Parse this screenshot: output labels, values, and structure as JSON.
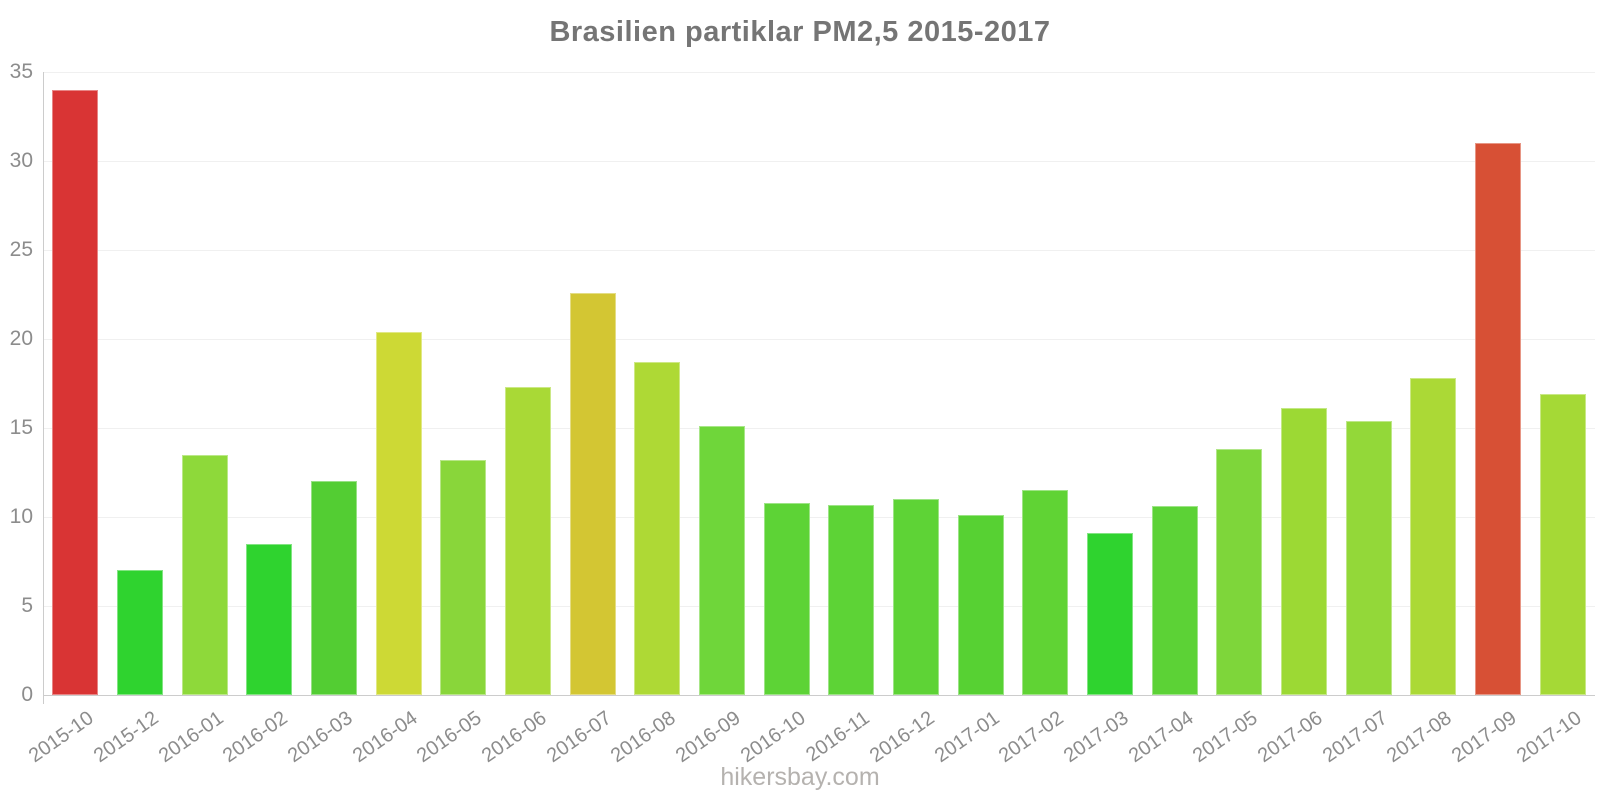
{
  "chart_data": {
    "type": "bar",
    "title": "Brasilien partiklar PM2,5 2015-2017",
    "categories": [
      "2015-10",
      "2015-12",
      "2016-01",
      "2016-02",
      "2016-03",
      "2016-04",
      "2016-05",
      "2016-06",
      "2016-07",
      "2016-08",
      "2016-09",
      "2016-10",
      "2016-11",
      "2016-12",
      "2017-01",
      "2017-02",
      "2017-03",
      "2017-04",
      "2017-05",
      "2017-06",
      "2017-07",
      "2017-08",
      "2017-09",
      "2017-10"
    ],
    "values": [
      34,
      7,
      13.5,
      8.5,
      12,
      20.4,
      13.2,
      17.3,
      22.6,
      18.7,
      15.1,
      10.8,
      10.7,
      11,
      10.1,
      11.5,
      9.1,
      10.6,
      13.8,
      16.1,
      15.4,
      17.8,
      31,
      16.9
    ],
    "bar_colors": [
      "#d93434",
      "#2fd32f",
      "#8ed93a",
      "#2fd32f",
      "#53cd33",
      "#cdd935",
      "#89d63a",
      "#a9d936",
      "#d3c633",
      "#aed935",
      "#6fd63a",
      "#5dd336",
      "#5dd336",
      "#5ed336",
      "#57d133",
      "#60d334",
      "#2fd32f",
      "#5cd236",
      "#7ed63a",
      "#9cd934",
      "#93d839",
      "#abd936",
      "#d75035",
      "#a5d936"
    ],
    "xlabel": "",
    "ylabel": "",
    "ylim": [
      0,
      35
    ],
    "yticks": [
      0,
      5,
      10,
      15,
      20,
      25,
      30,
      35
    ],
    "grid": "horizontal",
    "legend": "none",
    "colors": {
      "title_text": "#757575",
      "axis_line": "#cccccc",
      "gridline": "#f0f0f0",
      "tick_text": "#8c8c8c",
      "watermark_text": "#b5b2af",
      "background": "#ffffff"
    }
  },
  "watermark": "hikersbay.com"
}
